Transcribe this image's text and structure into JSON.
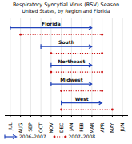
{
  "chart_data": {
    "type": "range",
    "title": "Respiratory Syncytial Virus (RSV) Season",
    "subtitle": "United States, by Region and Florida",
    "categories": [
      "Florida",
      "South",
      "Northeast",
      "Midwest",
      "West"
    ],
    "x": [
      "JUL",
      "AUG",
      "SEP",
      "OCT",
      "NOV",
      "DEC",
      "JAN",
      "FEB",
      "MAR",
      "APR",
      "MAY",
      "JUN"
    ],
    "series": [
      {
        "name": "2006–2007",
        "color": "#2244bb",
        "line_style": "solid",
        "marker": "arrow",
        "values": [
          [
            "JUL",
            "MAR"
          ],
          [
            "OCT",
            "MAR"
          ],
          [
            "NOV",
            "MAR"
          ],
          [
            "NOV",
            "MAR"
          ],
          [
            "DEC",
            "APR"
          ]
        ]
      },
      {
        "name": "2007–2008",
        "color": "#cc1111",
        "line_style": "dotted",
        "marker": "circle",
        "values": [
          [
            "AUG",
            "APR"
          ],
          [
            "NOV",
            "APR"
          ],
          [
            "NOV",
            "APR"
          ],
          [
            "DEC",
            "APR"
          ],
          [
            "DEC",
            "MAY"
          ]
        ]
      }
    ],
    "grid": true,
    "legend": "lower left",
    "tick_labels": "x"
  }
}
